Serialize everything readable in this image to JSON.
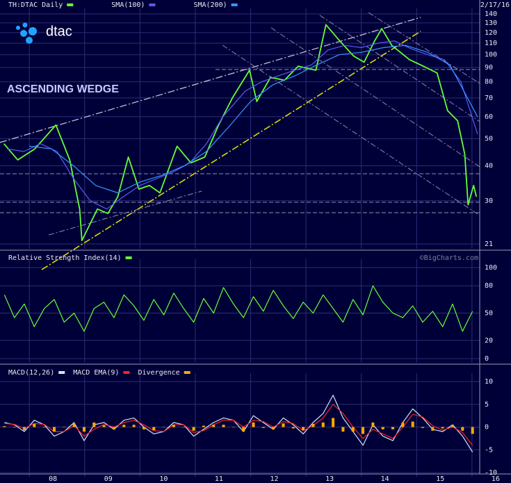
{
  "chart_data": [
    {
      "type": "line",
      "log_y": true,
      "grid": true,
      "date": "2/17/16",
      "logo": "dtac",
      "annotation": "ASCENDING WEDGE",
      "watermark": "©BigCharts.com",
      "xlim": [
        2007.47,
        2016.14
      ],
      "xticks": [
        {
          "value": 2008,
          "label": "08"
        },
        {
          "value": 2009,
          "label": "09"
        },
        {
          "value": 2010,
          "label": "10"
        },
        {
          "value": 2011,
          "label": "11"
        },
        {
          "value": 2012,
          "label": "12"
        },
        {
          "value": 2013,
          "label": "13"
        },
        {
          "value": 2014,
          "label": "14"
        },
        {
          "value": 2015,
          "label": "15"
        },
        {
          "value": 2016,
          "label": "16"
        }
      ],
      "ylim": [
        21,
        140
      ],
      "yticks": [
        21,
        30,
        40,
        50,
        60,
        70,
        80,
        90,
        100,
        110,
        120,
        130,
        140
      ],
      "series": [
        {
          "name": "TH:DTAC Daily",
          "color": "#66ff33",
          "x": [
            2007.54,
            2007.79,
            2008.1,
            2008.48,
            2008.73,
            2008.91,
            2008.95,
            2009.23,
            2009.42,
            2009.6,
            2009.79,
            2009.98,
            2010.17,
            2010.36,
            2010.67,
            2010.92,
            2011.17,
            2011.42,
            2011.67,
            2011.98,
            2012.11,
            2012.36,
            2012.61,
            2012.86,
            2013.18,
            2013.36,
            2013.61,
            2013.86,
            2014.05,
            2014.24,
            2014.37,
            2014.55,
            2014.87,
            2015.12,
            2015.37,
            2015.56,
            2015.74,
            2015.87,
            2015.93,
            2016.03,
            2016.08
          ],
          "values": [
            48,
            42,
            46,
            56,
            42,
            28,
            21.6,
            28,
            27,
            31,
            43,
            33,
            34,
            32,
            47,
            41,
            43,
            56,
            70,
            88,
            68,
            83,
            81,
            91,
            88,
            128,
            112,
            99,
            94,
            112,
            124,
            108,
            96,
            91,
            86,
            63,
            58,
            44,
            29,
            34,
            31
          ]
        },
        {
          "name": "SMA(100)",
          "color": "#5a5aff",
          "x": [
            2007.6,
            2007.9,
            2008.2,
            2008.5,
            2008.8,
            2009.1,
            2009.4,
            2009.7,
            2010.0,
            2010.3,
            2010.6,
            2010.9,
            2011.2,
            2011.5,
            2011.9,
            2012.2,
            2012.5,
            2012.8,
            2013.1,
            2013.4,
            2013.7,
            2014.0,
            2014.3,
            2014.6,
            2014.9,
            2015.2,
            2015.5,
            2015.8,
            2016.1
          ],
          "values": [
            46,
            45,
            48,
            45,
            36,
            30,
            28,
            31,
            34,
            36,
            38,
            41,
            48,
            60,
            74,
            80,
            84,
            88,
            92,
            104,
            108,
            106,
            110,
            112,
            105,
            100,
            96,
            80,
            52
          ]
        },
        {
          "name": "SMA(200)",
          "color": "#3399ff",
          "x": [
            2008.0,
            2008.4,
            2008.8,
            2009.2,
            2009.6,
            2010.0,
            2010.4,
            2010.8,
            2011.2,
            2011.6,
            2012.0,
            2012.4,
            2012.8,
            2013.2,
            2013.6,
            2014.0,
            2014.4,
            2014.8,
            2015.2,
            2015.6,
            2016.1
          ],
          "values": [
            47,
            46,
            40,
            34,
            32,
            35,
            37,
            40,
            45,
            55,
            68,
            78,
            84,
            92,
            100,
            102,
            106,
            108,
            102,
            92,
            60
          ]
        }
      ]
    },
    {
      "type": "line",
      "grid": true,
      "xlim": [
        2007.47,
        2016.14
      ],
      "ylim": [
        0,
        100
      ],
      "yticks": [
        0,
        20,
        50,
        80,
        100
      ],
      "series": [
        {
          "name": "Relative Strength Index(14)",
          "color": "#66ff33",
          "x": [
            2007.55,
            2007.73,
            2007.91,
            2008.09,
            2008.27,
            2008.45,
            2008.63,
            2008.81,
            2008.99,
            2009.17,
            2009.35,
            2009.53,
            2009.71,
            2009.89,
            2010.07,
            2010.25,
            2010.43,
            2010.61,
            2010.79,
            2010.97,
            2011.15,
            2011.33,
            2011.51,
            2011.69,
            2011.87,
            2012.05,
            2012.23,
            2012.41,
            2012.59,
            2012.77,
            2012.95,
            2013.13,
            2013.31,
            2013.49,
            2013.67,
            2013.85,
            2014.03,
            2014.21,
            2014.39,
            2014.57,
            2014.75,
            2014.93,
            2015.11,
            2015.29,
            2015.47,
            2015.65,
            2015.83,
            2016.01
          ],
          "values": [
            70,
            45,
            60,
            35,
            55,
            65,
            40,
            50,
            30,
            55,
            62,
            45,
            70,
            58,
            42,
            65,
            48,
            72,
            55,
            40,
            66,
            50,
            78,
            60,
            45,
            68,
            52,
            75,
            58,
            44,
            62,
            50,
            70,
            55,
            40,
            65,
            48,
            80,
            62,
            50,
            45,
            58,
            40,
            52,
            35,
            60,
            30,
            52
          ]
        }
      ]
    },
    {
      "type": "line",
      "grid": true,
      "xlim": [
        2007.47,
        2016.14
      ],
      "ylim": [
        -10,
        10
      ],
      "yticks": [
        10,
        5,
        0,
        -5,
        -10
      ],
      "series": [
        {
          "name": "MACD(12,26)",
          "color": "#cce6ff",
          "x": [
            2007.55,
            2007.73,
            2007.91,
            2008.09,
            2008.27,
            2008.45,
            2008.63,
            2008.81,
            2008.99,
            2009.17,
            2009.35,
            2009.53,
            2009.71,
            2009.89,
            2010.07,
            2010.25,
            2010.43,
            2010.61,
            2010.79,
            2010.97,
            2011.15,
            2011.33,
            2011.51,
            2011.69,
            2011.87,
            2012.05,
            2012.23,
            2012.41,
            2012.59,
            2012.77,
            2012.95,
            2013.13,
            2013.31,
            2013.49,
            2013.67,
            2013.85,
            2014.03,
            2014.21,
            2014.39,
            2014.57,
            2014.75,
            2014.93,
            2015.11,
            2015.29,
            2015.47,
            2015.65,
            2015.83,
            2016.01
          ],
          "values": [
            1,
            0.5,
            -1,
            1.5,
            0.5,
            -2,
            -1,
            1,
            -3,
            0.5,
            1,
            -0.5,
            1.5,
            2,
            0,
            -1.5,
            -1,
            1,
            0.5,
            -2,
            -0.5,
            1,
            2,
            1.5,
            -1,
            2.5,
            1,
            -0.5,
            2,
            0.5,
            -1.5,
            1,
            3,
            7,
            2,
            -1,
            -4,
            0.5,
            -2,
            -3,
            1,
            4,
            2,
            -0.5,
            -1,
            0.5,
            -2,
            -5.5
          ]
        },
        {
          "name": "MACD EMA(9)",
          "color": "#ff2020",
          "x": [
            2007.55,
            2007.73,
            2007.91,
            2008.09,
            2008.27,
            2008.45,
            2008.63,
            2008.81,
            2008.99,
            2009.17,
            2009.35,
            2009.53,
            2009.71,
            2009.89,
            2010.07,
            2010.25,
            2010.43,
            2010.61,
            2010.79,
            2010.97,
            2011.15,
            2011.33,
            2011.51,
            2011.69,
            2011.87,
            2012.05,
            2012.23,
            2012.41,
            2012.59,
            2012.77,
            2012.95,
            2013.13,
            2013.31,
            2013.49,
            2013.67,
            2013.85,
            2014.03,
            2014.21,
            2014.39,
            2014.57,
            2014.75,
            2014.93,
            2015.11,
            2015.29,
            2015.47,
            2015.65,
            2015.83,
            2016.01
          ],
          "values": [
            0.8,
            0.6,
            -0.3,
            0.8,
            0.6,
            -1,
            -1,
            0.3,
            -2,
            -0.5,
            0.6,
            0,
            1,
            1.5,
            0.5,
            -0.8,
            -1,
            0.5,
            0.5,
            -1.2,
            -0.8,
            0.5,
            1.5,
            1.5,
            0,
            1.5,
            1.2,
            0,
            1.2,
            0.8,
            -0.8,
            0.3,
            2,
            5,
            3,
            0,
            -2.5,
            -0.5,
            -1.5,
            -2.5,
            0,
            2.8,
            2.2,
            0.3,
            -0.7,
            0,
            -1.2,
            -4
          ]
        },
        {
          "name": "Divergence",
          "color": "#ffaa00",
          "type": "bar",
          "x": [
            2007.55,
            2007.73,
            2007.91,
            2008.09,
            2008.27,
            2008.45,
            2008.63,
            2008.81,
            2008.99,
            2009.17,
            2009.35,
            2009.53,
            2009.71,
            2009.89,
            2010.07,
            2010.25,
            2010.43,
            2010.61,
            2010.79,
            2010.97,
            2011.15,
            2011.33,
            2011.51,
            2011.69,
            2011.87,
            2012.05,
            2012.23,
            2012.41,
            2012.59,
            2012.77,
            2012.95,
            2013.13,
            2013.31,
            2013.49,
            2013.67,
            2013.85,
            2014.03,
            2014.21,
            2014.39,
            2014.57,
            2014.75,
            2014.93,
            2015.11,
            2015.29,
            2015.47,
            2015.65,
            2015.83,
            2016.01
          ],
          "values": [
            0.2,
            -0.1,
            -0.7,
            0.7,
            -0.1,
            -1,
            0,
            0.7,
            -1,
            1,
            0.4,
            -0.5,
            0.5,
            0.5,
            -0.5,
            -0.7,
            0,
            0.5,
            0,
            -0.8,
            0.3,
            0.5,
            0.5,
            0,
            -1,
            1,
            -0.2,
            -0.5,
            0.8,
            -0.3,
            -0.7,
            0.7,
            1,
            2,
            -1,
            -1,
            -1.5,
            1,
            -0.5,
            -0.5,
            1,
            1.2,
            -0.2,
            -0.8,
            -0.3,
            0.5,
            -0.8,
            -1.5
          ]
        }
      ]
    }
  ]
}
